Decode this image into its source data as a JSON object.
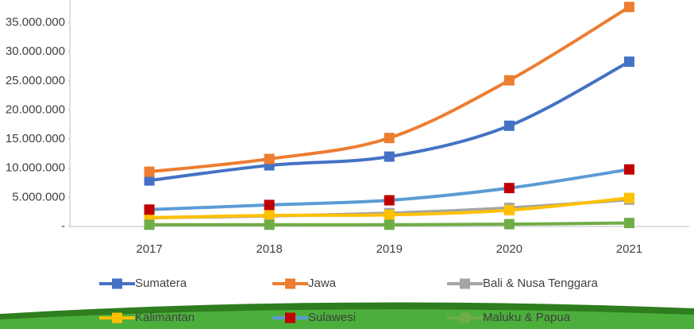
{
  "chart_data": {
    "type": "line",
    "categories": [
      "2017",
      "2018",
      "2019",
      "2020",
      "2021"
    ],
    "series": [
      {
        "name": "Sumatera",
        "color": "#4472c4",
        "marker_color": "#4472c4",
        "values": [
          7900000,
          10500000,
          12000000,
          17300000,
          28300000
        ]
      },
      {
        "name": "Jawa",
        "color": "#ed7d31",
        "marker_color": "#ed7d31",
        "values": [
          9400000,
          11600000,
          15200000,
          25100000,
          37700000
        ]
      },
      {
        "name": "Bali & Nusa Tenggara",
        "color": "#a5a5a5",
        "marker_color": "#a5a5a5",
        "values": [
          1500000,
          1800000,
          2300000,
          3200000,
          4600000
        ]
      },
      {
        "name": "Kalimantan",
        "color": "#ffc000",
        "marker_color": "#ffc000",
        "values": [
          1500000,
          1900000,
          2000000,
          2800000,
          4900000
        ]
      },
      {
        "name": "Sulawesi",
        "color": "#5b9bd5",
        "marker_color": "#c00000",
        "values": [
          2900000,
          3700000,
          4500000,
          6600000,
          9800000
        ]
      },
      {
        "name": "Maluku & Papua",
        "color": "#70ad47",
        "marker_color": "#70ad47",
        "values": [
          300000,
          300000,
          300000,
          400000,
          600000
        ]
      }
    ],
    "ylim": [
      0,
      38900000
    ],
    "yticks": [
      {
        "value": 0,
        "label": "-"
      },
      {
        "value": 5000000,
        "label": "5.000.000"
      },
      {
        "value": 10000000,
        "label": "10.000.000"
      },
      {
        "value": 15000000,
        "label": "15.000.000"
      },
      {
        "value": 20000000,
        "label": "20.000.000"
      },
      {
        "value": 25000000,
        "label": "25.000.000"
      },
      {
        "value": 30000000,
        "label": "30.000.000"
      },
      {
        "value": 35000000,
        "label": "35.000.000"
      }
    ],
    "legend": "bottom"
  }
}
